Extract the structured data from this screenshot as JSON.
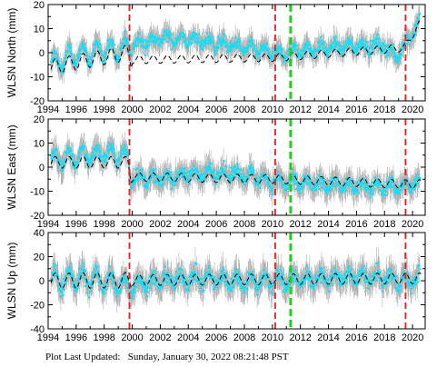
{
  "footer": {
    "label": "Plot Last Updated:",
    "value": "Sunday, January 30, 2022 08:21:48 PST"
  },
  "colors": {
    "data": "#00e5ff",
    "error": "#b0b0b0",
    "model": "#000000",
    "red_line": "#dd2222",
    "green_line": "#22cc22"
  },
  "chart_data": [
    {
      "type": "scatter",
      "ylabel": "WLSN North (mm)",
      "xlim": [
        1994,
        2020.9
      ],
      "ylim": [
        -20,
        20
      ],
      "xticks": [
        "1994",
        "1996",
        "1998",
        "2000",
        "2002",
        "2004",
        "2006",
        "2008",
        "2010",
        "2012",
        "2014",
        "2016",
        "2018",
        "2020"
      ],
      "yticks": [
        "20",
        "10",
        "0",
        "-10",
        "-20"
      ],
      "ytick_values": [
        20,
        10,
        0,
        -10,
        -20
      ],
      "vlines_red": [
        1999.8,
        2010.2,
        2019.5
      ],
      "vlines_green": [
        2011.3
      ],
      "trend_points": [
        [
          1994.2,
          -5
        ],
        [
          1996,
          -1
        ],
        [
          1998,
          1
        ],
        [
          1999.7,
          2
        ],
        [
          1999.9,
          3
        ],
        [
          2002,
          6
        ],
        [
          2004,
          5.5
        ],
        [
          2006,
          4
        ],
        [
          2008,
          2
        ],
        [
          2010,
          0
        ],
        [
          2010.3,
          -1
        ],
        [
          2012,
          1
        ],
        [
          2014,
          2
        ],
        [
          2016,
          3
        ],
        [
          2018,
          3
        ],
        [
          2018.8,
          -2
        ],
        [
          2019.5,
          4
        ],
        [
          2020.5,
          13
        ]
      ],
      "model_points": [
        [
          1994.2,
          -6
        ],
        [
          1999.7,
          0
        ],
        [
          1999.9,
          -3
        ],
        [
          2010.3,
          -2
        ],
        [
          2019.4,
          2
        ],
        [
          2020.5,
          12
        ]
      ],
      "seasonal_amplitude": [
        4,
        1.8
      ],
      "scatter_noise": 2.4,
      "error_bar_size": 4
    },
    {
      "type": "scatter",
      "ylabel": "WLSN East (mm)",
      "xlim": [
        1994,
        2020.9
      ],
      "ylim": [
        -20,
        20
      ],
      "xticks": [
        "1994",
        "1996",
        "1998",
        "2000",
        "2002",
        "2004",
        "2006",
        "2008",
        "2010",
        "2012",
        "2014",
        "2016",
        "2018",
        "2020"
      ],
      "yticks": [
        "20",
        "10",
        "0",
        "-10",
        "-20"
      ],
      "ytick_values": [
        20,
        10,
        0,
        -10,
        -20
      ],
      "vlines_red": [
        1999.8,
        2010.2,
        2019.5
      ],
      "vlines_green": [
        2011.3
      ],
      "trend_points": [
        [
          1994.2,
          3
        ],
        [
          1996,
          4
        ],
        [
          1998,
          6
        ],
        [
          1999.7,
          4
        ],
        [
          1999.9,
          -4
        ],
        [
          2002,
          -5
        ],
        [
          2004,
          -3
        ],
        [
          2006,
          -2
        ],
        [
          2008,
          -3
        ],
        [
          2010,
          -6
        ],
        [
          2010.3,
          -6
        ],
        [
          2012,
          -7
        ],
        [
          2014,
          -7
        ],
        [
          2016,
          -8
        ],
        [
          2018,
          -8
        ],
        [
          2019.5,
          -8
        ],
        [
          2020.5,
          -6
        ]
      ],
      "model_points": [
        [
          1994.2,
          2
        ],
        [
          1999.7,
          2
        ],
        [
          1999.9,
          -4
        ],
        [
          2010.3,
          -5
        ],
        [
          2019.4,
          -7
        ],
        [
          2020.5,
          -7
        ]
      ],
      "seasonal_amplitude": [
        3,
        2
      ],
      "scatter_noise": 2.6,
      "error_bar_size": 4.5
    },
    {
      "type": "scatter",
      "ylabel": "WLSN Up (mm)",
      "xlim": [
        1994,
        2020.9
      ],
      "ylim": [
        -40,
        40
      ],
      "xticks": [
        "1994",
        "1996",
        "1998",
        "2000",
        "2002",
        "2004",
        "2006",
        "2008",
        "2010",
        "2012",
        "2014",
        "2016",
        "2018",
        "2020"
      ],
      "yticks": [
        "40",
        "20",
        "0",
        "-20",
        "-40"
      ],
      "ytick_values": [
        40,
        20,
        0,
        -20,
        -40
      ],
      "vlines_red": [
        1999.8,
        2010.2,
        2019.5
      ],
      "vlines_green": [
        2011.3
      ],
      "trend_points": [
        [
          1994.2,
          0
        ],
        [
          1996,
          2
        ],
        [
          1998,
          0
        ],
        [
          1999.7,
          -5
        ],
        [
          1999.9,
          -3
        ],
        [
          2002,
          0
        ],
        [
          2004,
          2
        ],
        [
          2006,
          1
        ],
        [
          2008,
          0
        ],
        [
          2010,
          0
        ],
        [
          2012,
          1
        ],
        [
          2014,
          2
        ],
        [
          2016,
          3
        ],
        [
          2018,
          2
        ],
        [
          2019.5,
          0
        ],
        [
          2020.5,
          2
        ]
      ],
      "model_points": [
        [
          1994.2,
          0
        ],
        [
          2020.5,
          2
        ]
      ],
      "seasonal_amplitude": [
        8,
        5
      ],
      "scatter_noise": 6,
      "error_bar_size": 10
    }
  ]
}
